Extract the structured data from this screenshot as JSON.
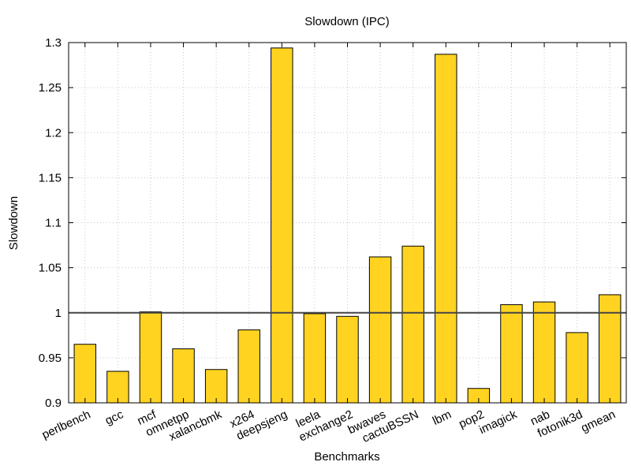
{
  "chart_data": {
    "type": "bar",
    "title": "Slowdown (IPC)",
    "xlabel": "Benchmarks",
    "ylabel": "Slowdown",
    "ylim": [
      0.9,
      1.3
    ],
    "yticks": [
      "0.9",
      "0.95",
      "1",
      "1.05",
      "1.1",
      "1.15",
      "1.2",
      "1.25",
      "1.3"
    ],
    "grid": true,
    "reference_line": 1.0,
    "bar_color": "#ffd320",
    "categories": [
      "perlbench",
      "gcc",
      "mcf",
      "omnetpp",
      "xalancbmk",
      "x264",
      "deepsjeng",
      "leela",
      "exchange2",
      "bwaves",
      "cactuBSSN",
      "lbm",
      "pop2",
      "imagick",
      "nab",
      "fotonik3d",
      "gmean"
    ],
    "values": [
      0.965,
      0.935,
      1.001,
      0.96,
      0.937,
      0.981,
      1.294,
      0.999,
      0.996,
      1.062,
      1.074,
      1.287,
      0.916,
      1.009,
      1.012,
      0.978,
      1.02
    ]
  }
}
